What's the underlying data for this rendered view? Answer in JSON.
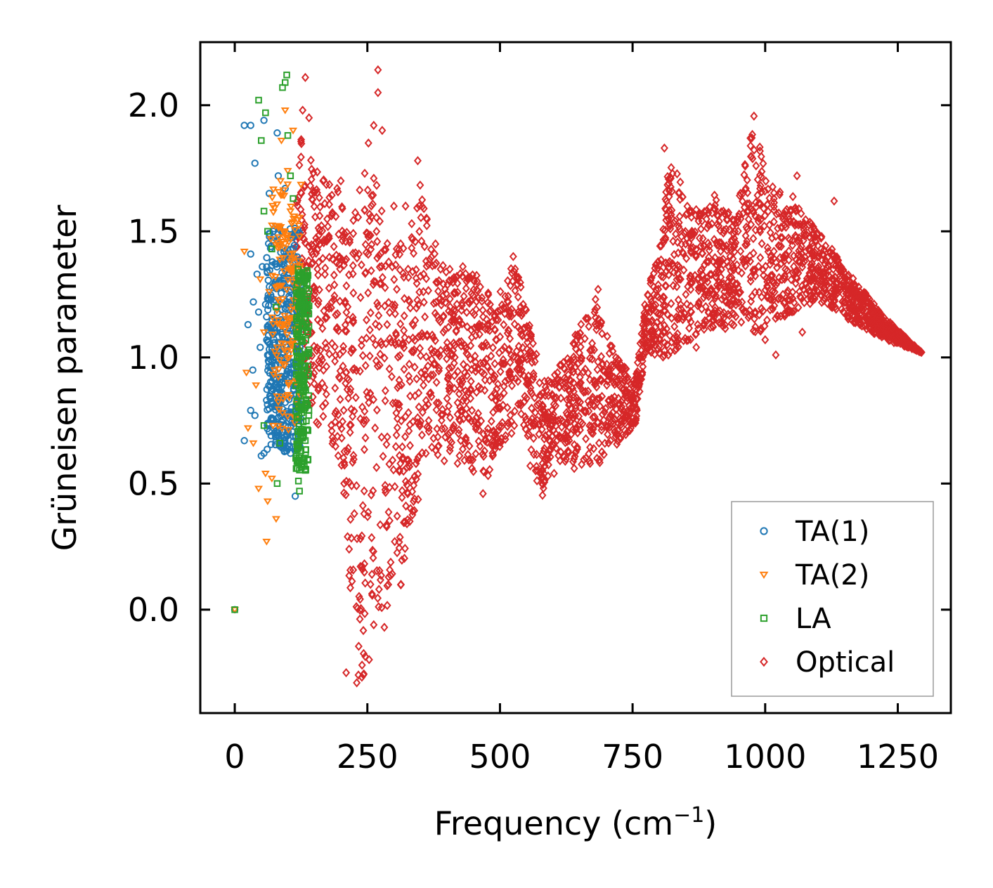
{
  "chart_data": {
    "type": "scatter",
    "title": "",
    "xlabel": "Frequency (cm",
    "xlabel_sup": "−1",
    "xlabel_close": ")",
    "ylabel": "Grüneisen parameter",
    "xlim": [
      -65,
      1350
    ],
    "ylim": [
      -0.41,
      2.25
    ],
    "xticks": [
      0,
      250,
      500,
      750,
      1000,
      1250
    ],
    "xtick_labels": [
      "0",
      "250",
      "500",
      "750",
      "1000",
      "1250"
    ],
    "yticks": [
      0.0,
      0.5,
      1.0,
      1.5,
      2.0
    ],
    "ytick_labels": [
      "0.0",
      "0.5",
      "1.0",
      "1.5",
      "2.0"
    ],
    "grid": false,
    "legend_position": "bottom-right",
    "series": [
      {
        "name": "TA(1)",
        "marker": "circle",
        "color": "#1f77b4",
        "points": [
          [
            0,
            0
          ],
          [
            18,
            0.67
          ],
          [
            18,
            1.92
          ],
          [
            30,
            1.41
          ],
          [
            30,
            0.79
          ],
          [
            30,
            1.92
          ],
          [
            38,
            1.77
          ],
          [
            38,
            0.77
          ],
          [
            45,
            1.18
          ],
          [
            50,
            0.61
          ],
          [
            55,
            0.62
          ],
          [
            55,
            1.94
          ],
          [
            60,
            0.83
          ],
          [
            65,
            1.65
          ],
          [
            66,
            1.49
          ],
          [
            70,
            0.97
          ],
          [
            75,
            0.7
          ],
          [
            75,
            1.29
          ],
          [
            80,
            1.89
          ],
          [
            82,
            1.72
          ],
          [
            85,
            1.51
          ],
          [
            86,
            1.0
          ],
          [
            90,
            0.64
          ],
          [
            92,
            0.85
          ],
          [
            95,
            1.67
          ],
          [
            98,
            0.63
          ],
          [
            100,
            1.39
          ],
          [
            102,
            0.92
          ],
          [
            105,
            0.62
          ],
          [
            108,
            0.77
          ],
          [
            110,
            1.11
          ],
          [
            112,
            1.31
          ],
          [
            114,
            0.45
          ],
          [
            117,
            1.22
          ],
          [
            120,
            0.84
          ],
          [
            35,
            1.22
          ],
          [
            42,
            1.33
          ],
          [
            48,
            1.04
          ],
          [
            58,
            1.21
          ],
          [
            62,
            1.12
          ],
          [
            68,
            1.44
          ],
          [
            72,
            1.09
          ],
          [
            78,
            1.37
          ],
          [
            88,
            1.19
          ],
          [
            96,
            1.05
          ],
          [
            104,
            1.26
          ],
          [
            116,
            1.5
          ],
          [
            25,
            1.13
          ],
          [
            34,
            0.95
          ],
          [
            52,
            1.36
          ]
        ],
        "cluster": {
          "x": [
            60,
            125
          ],
          "ymin": [
            0.62,
            1.52
          ],
          "count": 420
        }
      },
      {
        "name": "TA(2)",
        "marker": "triangle-down",
        "color": "#ff7f0e",
        "points": [
          [
            0,
            0
          ],
          [
            18,
            1.42
          ],
          [
            22,
            0.94
          ],
          [
            25,
            0.72
          ],
          [
            35,
            0.66
          ],
          [
            40,
            0.89
          ],
          [
            45,
            0.48
          ],
          [
            55,
            1.1
          ],
          [
            60,
            0.27
          ],
          [
            62,
            0.43
          ],
          [
            65,
            1.26
          ],
          [
            70,
            0.52
          ],
          [
            78,
            0.36
          ],
          [
            80,
            1.04
          ],
          [
            88,
            1.86
          ],
          [
            95,
            1.98
          ],
          [
            100,
            1.74
          ],
          [
            105,
            1.58
          ],
          [
            90,
            0.78
          ],
          [
            75,
            0.95
          ],
          [
            58,
            0.54
          ],
          [
            48,
            1.31
          ],
          [
            68,
            1.47
          ],
          [
            85,
            1.22
          ],
          [
            110,
            1.9
          ],
          [
            112,
            1.35
          ],
          [
            118,
            1.06
          ]
        ],
        "cluster": {
          "x": [
            70,
            125
          ],
          "ymin": [
            0.7,
            1.7
          ],
          "count": 160
        }
      },
      {
        "name": "LA",
        "marker": "square",
        "color": "#2ca02c",
        "points": [
          [
            0,
            0
          ],
          [
            45,
            2.02
          ],
          [
            50,
            1.86
          ],
          [
            55,
            1.58
          ],
          [
            58,
            1.97
          ],
          [
            62,
            1.5
          ],
          [
            70,
            1.43
          ],
          [
            78,
            1.2
          ],
          [
            80,
            0.5
          ],
          [
            85,
            0.66
          ],
          [
            90,
            2.07
          ],
          [
            95,
            2.09
          ],
          [
            98,
            2.12
          ],
          [
            100,
            1.88
          ],
          [
            105,
            1.72
          ],
          [
            110,
            1.63
          ],
          [
            115,
            0.6
          ],
          [
            118,
            0.56
          ],
          [
            120,
            0.51
          ],
          [
            122,
            0.47
          ],
          [
            125,
            0.63
          ],
          [
            130,
            1.22
          ],
          [
            132,
            0.95
          ],
          [
            135,
            0.82
          ],
          [
            55,
            0.73
          ]
        ],
        "cluster": {
          "x": [
            115,
            140
          ],
          "ymin": [
            0.55,
            1.35
          ],
          "count": 220
        }
      },
      {
        "name": "Optical",
        "marker": "diamond",
        "color": "#d62728",
        "envelope": [
          [
            115,
            1.0,
            1.95
          ],
          [
            130,
            0.9,
            1.9
          ],
          [
            150,
            0.75,
            1.75
          ],
          [
            170,
            0.7,
            1.7
          ],
          [
            195,
            0.62,
            1.7
          ],
          [
            205,
            0.5,
            1.6
          ],
          [
            215,
            0.05,
            1.55
          ],
          [
            225,
            -0.2,
            1.6
          ],
          [
            235,
            -0.28,
            1.7
          ],
          [
            250,
            -0.25,
            1.75
          ],
          [
            265,
            -0.12,
            1.75
          ],
          [
            275,
            -0.05,
            1.6
          ],
          [
            290,
            0.0,
            1.5
          ],
          [
            310,
            0.05,
            1.45
          ],
          [
            330,
            0.3,
            1.5
          ],
          [
            350,
            0.45,
            1.7
          ],
          [
            370,
            0.6,
            1.5
          ],
          [
            390,
            0.62,
            1.4
          ],
          [
            410,
            0.62,
            1.35
          ],
          [
            430,
            0.6,
            1.33
          ],
          [
            450,
            0.52,
            1.35
          ],
          [
            470,
            0.47,
            1.3
          ],
          [
            490,
            0.62,
            1.27
          ],
          [
            510,
            0.67,
            1.28
          ],
          [
            525,
            0.7,
            1.38
          ],
          [
            540,
            0.75,
            1.3
          ],
          [
            555,
            0.65,
            1.15
          ],
          [
            570,
            0.5,
            1.02
          ],
          [
            580,
            0.45,
            0.9
          ],
          [
            600,
            0.6,
            0.93
          ],
          [
            620,
            0.58,
            1.0
          ],
          [
            640,
            0.57,
            1.08
          ],
          [
            660,
            0.55,
            1.18
          ],
          [
            680,
            0.57,
            1.25
          ],
          [
            700,
            0.6,
            1.1
          ],
          [
            720,
            0.65,
            1.0
          ],
          [
            740,
            0.7,
            0.95
          ],
          [
            755,
            0.73,
            0.9
          ],
          [
            775,
            1.03,
            1.25
          ],
          [
            800,
            1.0,
            1.42
          ],
          [
            820,
            1.0,
            1.82
          ],
          [
            840,
            1.05,
            1.7
          ],
          [
            860,
            1.07,
            1.58
          ],
          [
            880,
            1.1,
            1.6
          ],
          [
            900,
            1.12,
            1.65
          ],
          [
            920,
            1.1,
            1.62
          ],
          [
            940,
            1.12,
            1.55
          ],
          [
            960,
            1.15,
            1.75
          ],
          [
            980,
            1.1,
            1.97
          ],
          [
            1000,
            1.08,
            1.75
          ],
          [
            1020,
            1.15,
            1.65
          ],
          [
            1040,
            1.15,
            1.7
          ],
          [
            1060,
            1.18,
            1.6
          ],
          [
            1080,
            1.2,
            1.55
          ],
          [
            1100,
            1.22,
            1.5
          ],
          [
            1120,
            1.2,
            1.45
          ],
          [
            1150,
            1.16,
            1.35
          ],
          [
            1180,
            1.12,
            1.28
          ],
          [
            1210,
            1.09,
            1.2
          ],
          [
            1240,
            1.06,
            1.13
          ],
          [
            1270,
            1.04,
            1.07
          ],
          [
            1295,
            1.02,
            1.02
          ]
        ],
        "points": [
          [
            133,
            2.11
          ],
          [
            128,
            1.98
          ],
          [
            140,
            1.95
          ],
          [
            200,
            1.7
          ],
          [
            245,
            1.73
          ],
          [
            270,
            2.14
          ],
          [
            270,
            2.05
          ],
          [
            252,
            1.85
          ],
          [
            262,
            1.92
          ],
          [
            278,
            1.9
          ],
          [
            300,
            1.6
          ],
          [
            345,
            1.78
          ],
          [
            322,
            1.6
          ],
          [
            388,
            1.35
          ],
          [
            430,
            1.36
          ],
          [
            420,
            0.58
          ],
          [
            468,
            0.46
          ],
          [
            525,
            1.4
          ],
          [
            602,
            0.54
          ],
          [
            640,
            0.56
          ],
          [
            670,
            0.58
          ],
          [
            685,
            1.27
          ],
          [
            810,
            1.83
          ],
          [
            1060,
            1.72
          ],
          [
            1130,
            1.62
          ],
          [
            1070,
            1.1
          ],
          [
            870,
            1.04
          ],
          [
            775,
            1.02
          ],
          [
            210,
            -0.25
          ],
          [
            230,
            -0.29
          ],
          [
            240,
            -0.22
          ],
          [
            262,
            -0.06
          ],
          [
            282,
            -0.07
          ],
          [
            195,
            0.61
          ],
          [
            330,
            0.35
          ],
          [
            370,
            0.93
          ],
          [
            395,
            0.59
          ],
          [
            485,
            0.65
          ],
          [
            557,
            0.57
          ],
          [
            728,
            0.75
          ],
          [
            750,
            0.74
          ],
          [
            1000,
            1.07
          ],
          [
            1020,
            1.01
          ],
          [
            955,
            1.14
          ]
        ],
        "fill_count": 3200
      }
    ]
  }
}
